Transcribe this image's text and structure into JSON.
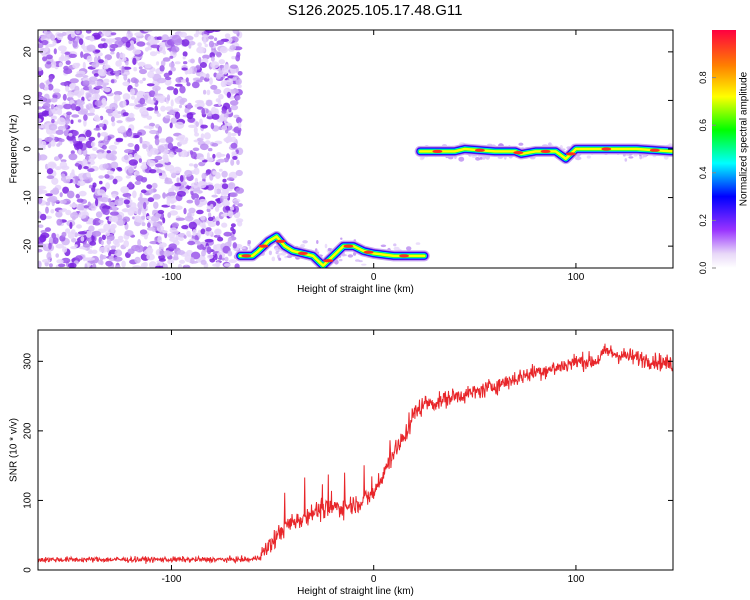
{
  "title": "S126.2025.105.17.48.G11",
  "chart_data": [
    {
      "type": "heatmap",
      "xlabel": "Height of straight line (km)",
      "ylabel": "Frequency (Hz)",
      "xlim": [
        -166,
        148
      ],
      "ylim": [
        -24.5,
        24.5
      ],
      "xticks": [
        -100,
        0,
        100
      ],
      "yticks": [
        -20,
        -10,
        0,
        10,
        20
      ],
      "colorbar": {
        "label": "Normalized spectral amplitude",
        "range": [
          0,
          1
        ],
        "ticks": [
          0.0,
          0.2,
          0.4,
          0.6,
          0.8
        ],
        "tick_labels": [
          "0.0",
          "0.2",
          "0.4",
          "0.6",
          "0.8"
        ],
        "colormap": [
          "#ffffff",
          "#e8d8f8",
          "#9933ff",
          "#0000ff",
          "#00ffff",
          "#00ff00",
          "#ffff00",
          "#ff8000",
          "#ff0040"
        ]
      },
      "noise_region_x": [
        -166,
        -66
      ],
      "track_segments": [
        {
          "x": [
            -66,
            -60,
            -57,
            -52,
            -48,
            -44,
            -40,
            -30,
            -25,
            -20,
            -15,
            -10,
            -5,
            0,
            10,
            20,
            25
          ],
          "y": [
            -22,
            -22,
            -21,
            -19,
            -18,
            -20,
            -21,
            -22,
            -24,
            -22,
            -20,
            -20,
            -21,
            -21.5,
            -22,
            -22,
            -22
          ]
        },
        {
          "x": [
            23,
            40,
            45,
            60,
            70,
            73,
            80,
            90,
            95,
            100,
            110,
            120,
            130,
            148
          ],
          "y": [
            -0.5,
            -0.5,
            0,
            -0.5,
            -0.5,
            -1,
            -0.5,
            -0.5,
            -2,
            0,
            0,
            0,
            0,
            -0.5
          ]
        }
      ]
    },
    {
      "type": "line",
      "xlabel": "Height of straight line (km)",
      "ylabel": "SNR (10 * v/v)",
      "xlim": [
        -166,
        148
      ],
      "ylim": [
        0,
        345
      ],
      "xticks": [
        -100,
        0,
        100
      ],
      "yticks": [
        0,
        100,
        200,
        300
      ],
      "color": "#e8262a",
      "series": [
        {
          "x": [
            -166,
            -150,
            -130,
            -110,
            -90,
            -70,
            -60,
            -56,
            -50,
            -45,
            -40,
            -35,
            -30,
            -25,
            -20,
            -15,
            -10,
            -5,
            0,
            5,
            10,
            15,
            20,
            25,
            30,
            40,
            50,
            60,
            70,
            80,
            90,
            100,
            110,
            115,
            120,
            130,
            140,
            148
          ],
          "values": [
            15,
            15,
            15,
            15,
            15,
            15,
            15,
            20,
            40,
            60,
            70,
            75,
            85,
            85,
            90,
            90,
            95,
            100,
            110,
            140,
            170,
            190,
            225,
            240,
            240,
            250,
            255,
            265,
            275,
            285,
            290,
            300,
            300,
            315,
            310,
            305,
            300,
            295
          ]
        }
      ]
    }
  ]
}
